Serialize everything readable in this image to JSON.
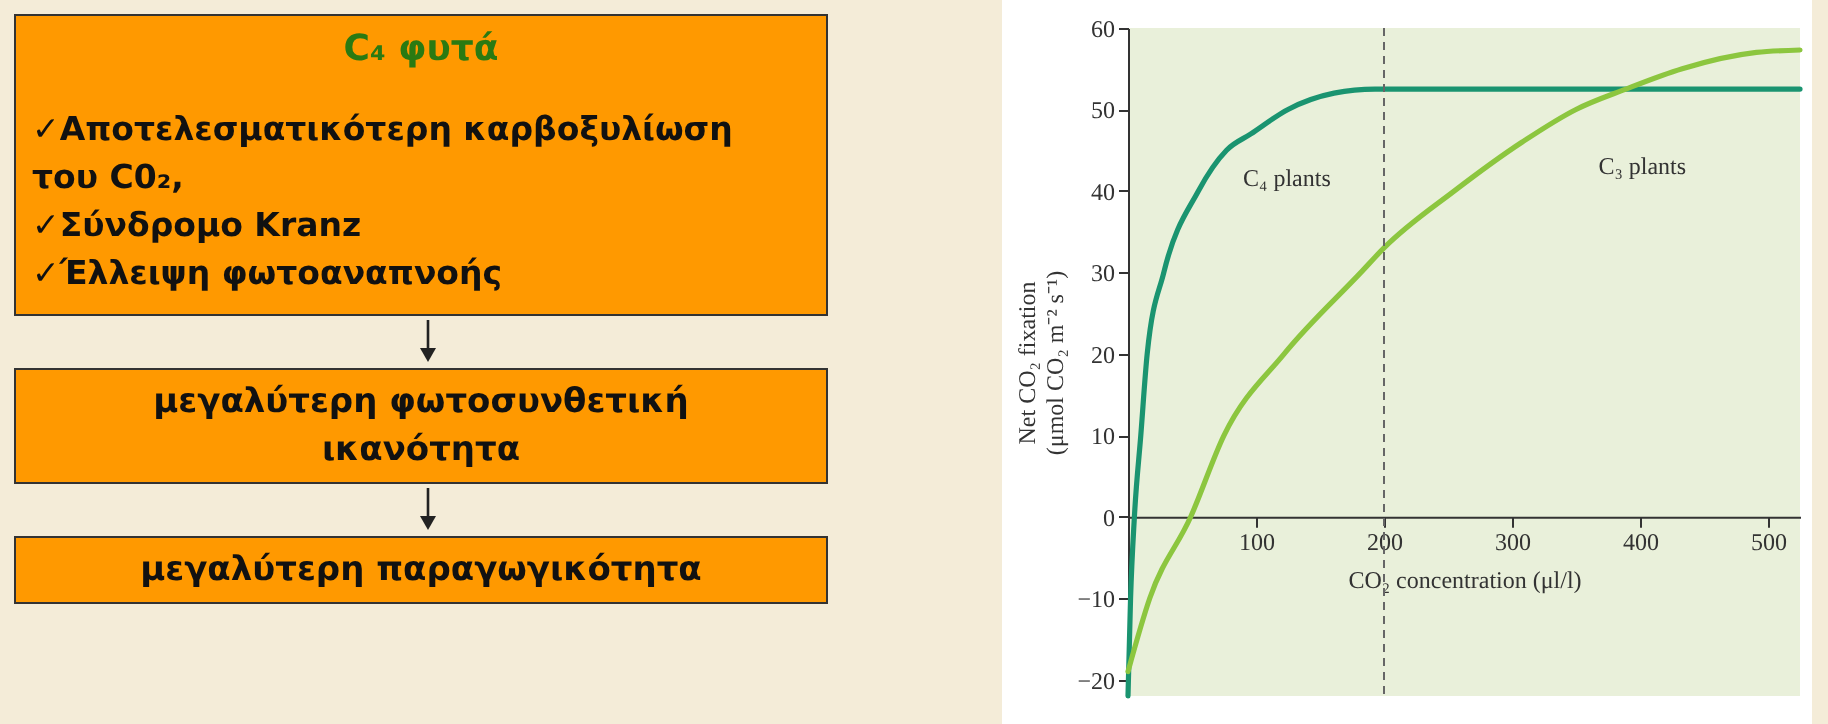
{
  "chart_data": [
    {
      "type": "other",
      "title": "C₄ φυτά",
      "annotations": [
        "✓Αποτελεσματικότερη καρβοξυλίωση του C0₂,",
        "✓Σύνδρομο Kranz",
        "✓Έλλειψη φωτοαναπνοής",
        "μεγαλύτερη φωτοσυνθετική ικανότητα",
        "μεγαλύτερη παραγωγικότητα"
      ]
    },
    {
      "type": "line",
      "xlabel": "CO₂ concentration (μl/l)",
      "ylabel": "Net CO₂ fixation\n(μmol CO₂ m⁻² s⁻¹)",
      "xlim": [
        0,
        525
      ],
      "ylim": [
        -22,
        60
      ],
      "xticks": [
        100,
        200,
        300,
        400,
        500
      ],
      "yticks": [
        -20,
        -10,
        0,
        10,
        20,
        30,
        40,
        50,
        60
      ],
      "grid": false,
      "legend": false,
      "marker": "none",
      "line_style": "solid",
      "ref_lines": [
        {
          "axis": "x",
          "value": 200,
          "color": "#666666",
          "line_style": "dashed"
        }
      ],
      "series": [
        {
          "name": "C₄ plants",
          "color": "#1a9470",
          "x": [
            0,
            2,
            5,
            10,
            15,
            28,
            55,
            77,
            96,
            125,
            161,
            193,
            250,
            350,
            450,
            525
          ],
          "values": [
            -22,
            -10,
            0,
            10,
            20,
            30,
            40,
            45,
            47,
            50,
            52,
            52.5,
            52.5,
            52.5,
            52.5,
            52.5
          ]
        },
        {
          "name": "C₃ plants",
          "color": "#8cc63f",
          "x": [
            0,
            17,
            49,
            75,
            122,
            182,
            200,
            255,
            308,
            350,
            389,
            433,
            491,
            525
          ],
          "values": [
            -19,
            -10,
            0,
            10,
            20,
            30,
            33,
            40,
            46,
            50,
            52.5,
            55,
            57,
            57.3
          ]
        }
      ]
    }
  ]
}
